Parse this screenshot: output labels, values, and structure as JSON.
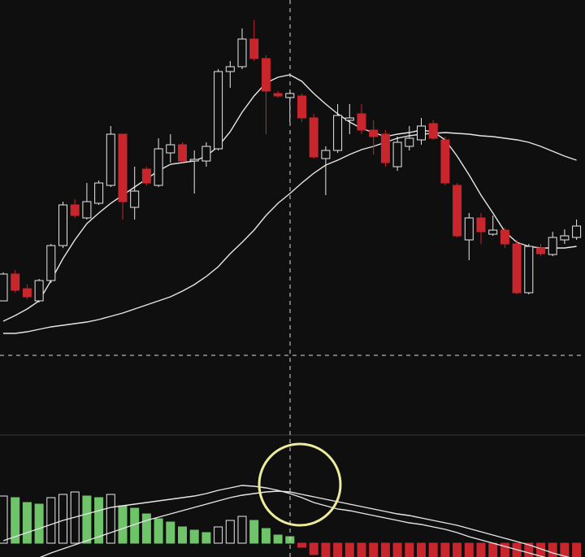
{
  "chart_data": [
    {
      "type": "candlestick",
      "up_color": "#e8e8e8",
      "down_color": "#c8262c",
      "open": [
        130,
        163,
        145,
        130,
        155,
        198,
        248,
        232,
        250,
        272,
        335,
        245,
        292,
        272,
        312,
        322,
        302,
        302,
        317,
        412,
        418,
        452,
        428,
        385,
        380,
        382,
        355,
        305,
        315,
        352,
        360,
        340,
        335,
        295,
        320,
        328,
        348,
        328,
        272,
        205,
        232,
        212,
        217,
        200,
        140,
        195,
        187,
        205,
        208
      ],
      "high": [
        165,
        168,
        150,
        157,
        200,
        252,
        255,
        275,
        278,
        345,
        335,
        295,
        295,
        330,
        335,
        325,
        315,
        325,
        415,
        425,
        465,
        475,
        432,
        388,
        388,
        385,
        360,
        320,
        372,
        372,
        372,
        352,
        340,
        332,
        345,
        355,
        352,
        332,
        275,
        238,
        238,
        235,
        220,
        205,
        200,
        200,
        215,
        218,
        230
      ],
      "low": [
        130,
        140,
        132,
        128,
        152,
        195,
        232,
        230,
        248,
        270,
        230,
        230,
        272,
        270,
        300,
        300,
        262,
        295,
        315,
        392,
        415,
        425,
        335,
        380,
        350,
        350,
        305,
        260,
        312,
        335,
        335,
        310,
        295,
        290,
        315,
        322,
        328,
        272,
        208,
        180,
        200,
        210,
        195,
        138,
        138,
        185,
        185,
        200,
        205
      ],
      "close": [
        163,
        143,
        135,
        155,
        198,
        248,
        235,
        252,
        275,
        335,
        252,
        265,
        275,
        317,
        322,
        302,
        304,
        320,
        412,
        418,
        452,
        428,
        388,
        382,
        385,
        355,
        307,
        315,
        358,
        355,
        340,
        332,
        300,
        325,
        330,
        345,
        330,
        275,
        210,
        232,
        215,
        217,
        200,
        140,
        197,
        188,
        208,
        210,
        222
      ],
      "lines": [
        {
          "color": "#e6e6e6",
          "values": [
            105,
            112,
            120,
            130,
            155,
            182,
            205,
            225,
            238,
            250,
            260,
            270,
            280,
            290,
            298,
            300,
            302,
            308,
            320,
            338,
            362,
            382,
            398,
            405,
            408,
            400,
            385,
            372,
            360,
            350,
            342,
            337,
            332,
            335,
            337,
            340,
            338,
            328,
            308,
            285,
            260,
            238,
            215,
            202,
            197,
            195,
            195,
            195,
            197
          ]
        },
        {
          "color": "#e6e6e6",
          "values": [
            90,
            90,
            92,
            95,
            98,
            100,
            102,
            104,
            107,
            111,
            115,
            120,
            125,
            130,
            135,
            142,
            150,
            160,
            172,
            188,
            202,
            217,
            235,
            250,
            262,
            275,
            287,
            297,
            303,
            310,
            316,
            320,
            325,
            330,
            333,
            335,
            336,
            337,
            336,
            335,
            333,
            332,
            330,
            328,
            325,
            320,
            314,
            308,
            303
          ]
        }
      ]
    },
    {
      "type": "histogram",
      "rise_color": "#e8e8e8",
      "fall_color": "#6fc46a",
      "negative_color": "#c8262c",
      "values": [
        58,
        56,
        50,
        48,
        56,
        60,
        63,
        58,
        56,
        60,
        46,
        43,
        36,
        30,
        26,
        20,
        16,
        13,
        20,
        28,
        33,
        28,
        18,
        10,
        8,
        -5,
        -14,
        -17,
        -18,
        -18,
        -18,
        -18,
        -18,
        -18,
        -18,
        -18,
        -18,
        -18,
        -18,
        -18,
        -18,
        -18,
        -18,
        -18,
        -18,
        -18,
        -18,
        -18,
        -18
      ],
      "lines": [
        {
          "color": "#e6e6e6",
          "values": [
            3,
            8,
            13,
            18,
            23,
            28,
            32,
            36,
            40,
            44,
            46,
            48,
            50,
            52,
            54,
            56,
            58,
            61,
            65,
            68,
            71,
            70,
            68,
            65,
            61,
            56,
            50,
            46,
            42,
            40,
            37,
            34,
            31,
            28,
            25,
            23,
            20,
            17,
            13,
            8,
            4,
            0,
            -4,
            -8,
            -12,
            -16,
            -20,
            -22,
            -24
          ]
        },
        {
          "color": "#e6e6e6",
          "values": [
            -32,
            -27,
            -22,
            -18,
            -12,
            -7,
            -2,
            3,
            8,
            13,
            18,
            23,
            28,
            32,
            36,
            40,
            44,
            48,
            52,
            56,
            59,
            61,
            63,
            64,
            63,
            60,
            57,
            54,
            51,
            48,
            45,
            42,
            39,
            36,
            34,
            31,
            28,
            25,
            22,
            18,
            14,
            10,
            6,
            2,
            -2,
            -7,
            -12,
            -16,
            -20
          ]
        }
      ]
    }
  ]
}
